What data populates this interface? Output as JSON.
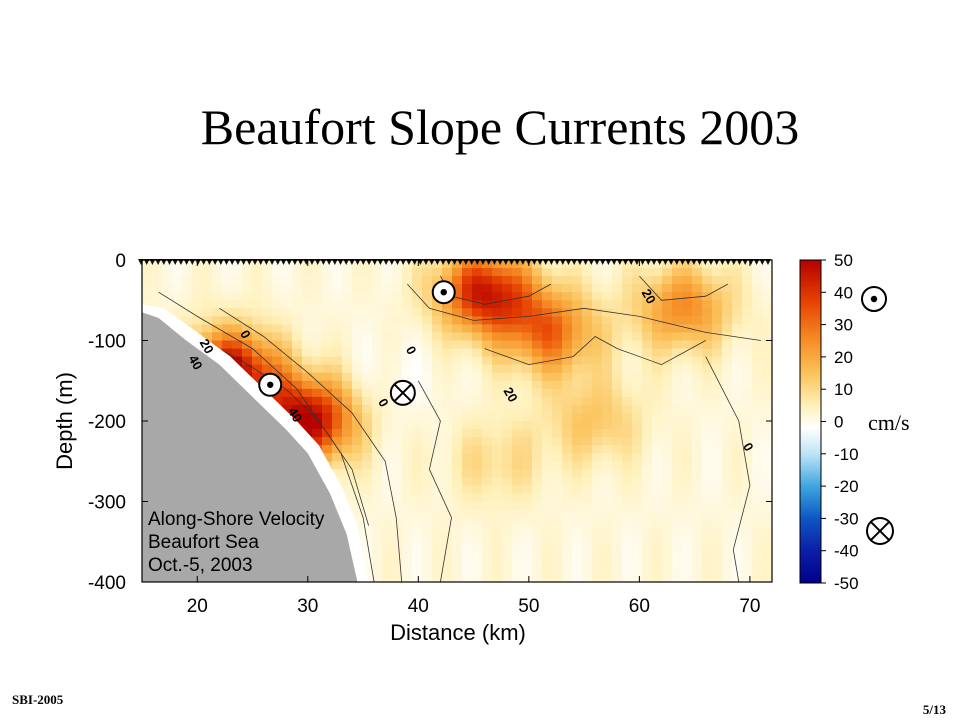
{
  "slide": {
    "title": "Beaufort Slope Currents 2003",
    "footer_left": "SBI-2005",
    "page_number": "5/13"
  },
  "chart_data": {
    "type": "heatmap",
    "title": "",
    "annotation_lines": [
      "Along-Shore Velocity",
      "Beaufort Sea",
      "Oct.-5, 2003"
    ],
    "xlabel": "Distance (km)",
    "ylabel": "Depth (m)",
    "xlim": [
      15,
      72
    ],
    "ylim": [
      -400,
      0
    ],
    "x_ticks": [
      20,
      30,
      40,
      50,
      60,
      70
    ],
    "y_ticks": [
      0,
      -100,
      -200,
      -300,
      -400
    ],
    "colorbar": {
      "range": [
        -50,
        50
      ],
      "ticks": [
        50,
        40,
        30,
        20,
        10,
        0,
        -10,
        -20,
        -30,
        -40,
        -50
      ],
      "unit_label": "cm/s",
      "positive_symbol": "out-of-page",
      "negative_symbol": "into-page"
    },
    "contour_labels": [
      {
        "x": 20.5,
        "y": -110,
        "text": "20"
      },
      {
        "x": 19.5,
        "y": -130,
        "text": "40"
      },
      {
        "x": 24,
        "y": -95,
        "text": "0"
      },
      {
        "x": 28.5,
        "y": -195,
        "text": "40"
      },
      {
        "x": 39,
        "y": -115,
        "text": "0"
      },
      {
        "x": 36.5,
        "y": -180,
        "text": "0"
      },
      {
        "x": 48,
        "y": -170,
        "text": "20"
      },
      {
        "x": 60.5,
        "y": -48,
        "text": "20"
      },
      {
        "x": 69.5,
        "y": -235,
        "text": "0"
      }
    ],
    "velocity_cores": [
      {
        "x": 23,
        "y": -140,
        "v": 45
      },
      {
        "x": 30,
        "y": -200,
        "v": 45
      },
      {
        "x": 46,
        "y": -40,
        "v": 40
      },
      {
        "x": 52,
        "y": -90,
        "v": 28
      },
      {
        "x": 64,
        "y": -60,
        "v": 25
      },
      {
        "x": 47,
        "y": -250,
        "v": 10
      },
      {
        "x": 56,
        "y": -200,
        "v": 14
      },
      {
        "x": 38,
        "y": -150,
        "v": -3
      }
    ],
    "flow_markers": [
      {
        "x": 42.3,
        "y": -40,
        "direction": "out-of-page"
      },
      {
        "x": 26.6,
        "y": -155,
        "direction": "out-of-page"
      },
      {
        "x": 38.6,
        "y": -165,
        "direction": "into-page"
      }
    ]
  }
}
